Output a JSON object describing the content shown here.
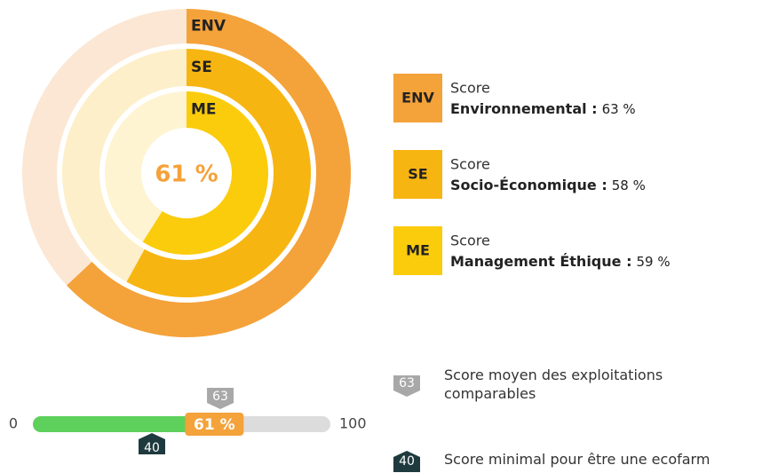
{
  "chart_data": [
    {
      "type": "radial",
      "center_value": 61,
      "center_label": "61 %",
      "xlim": [
        0,
        100
      ],
      "series": [
        {
          "name": "ENV",
          "color": "#f4a23a",
          "track_color": "#fbe7d3",
          "label_line1": "Score",
          "label": "Environnemental :",
          "values": [
            63
          ],
          "value_labels": [
            "63 %"
          ]
        },
        {
          "name": "SE",
          "color": "#f7b512",
          "track_color": "#fdefc9",
          "label_line1": "Score",
          "label": "Socio-Économique :",
          "values": [
            58
          ],
          "value_labels": [
            "58 %"
          ]
        },
        {
          "name": "ME",
          "color": "#fbcc0c",
          "track_color": "#fef4d2",
          "label_line1": "Score",
          "label": "Management Éthique :",
          "values": [
            59
          ],
          "value_labels": [
            "59 %"
          ]
        }
      ]
    },
    {
      "type": "gauge",
      "xlim": [
        0,
        100
      ],
      "xticks": [
        0,
        100
      ],
      "value": 61,
      "value_label": "61 %",
      "color": "#5dd15b",
      "track_color": "#dcdcdc",
      "value_color": "#f4a23a",
      "markers": [
        {
          "value": 63,
          "label": "63",
          "color": "#a8a8a8",
          "side": "top",
          "description": "Score moyen des exploitations comparables"
        },
        {
          "value": 40,
          "label": "40",
          "color": "#1e3a3e",
          "side": "bottom",
          "description": "Score minimal pour être une ecofarm"
        }
      ]
    }
  ]
}
